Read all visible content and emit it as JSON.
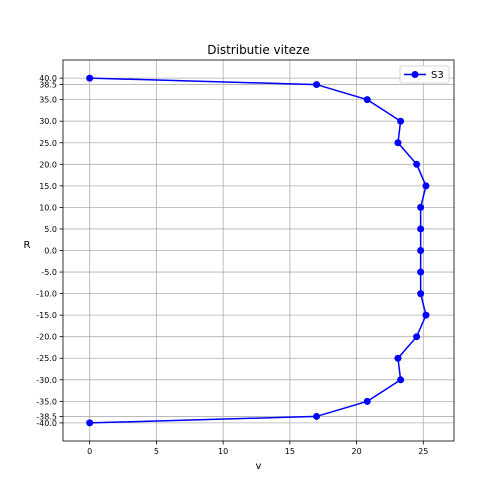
{
  "chart_data": {
    "type": "line",
    "title": "Distributie viteze",
    "xlabel": "v",
    "ylabel": "R",
    "xlim": [
      -2,
      27.3
    ],
    "ylim": [
      -44.2,
      44.2
    ],
    "xticks": [
      0,
      5,
      10,
      15,
      20,
      25
    ],
    "xtick_labels": [
      "0",
      "5",
      "10",
      "15",
      "20",
      "25"
    ],
    "yticks": [
      40,
      38.5,
      35,
      30,
      25,
      20,
      15,
      10,
      5,
      0,
      -5,
      -10,
      -15,
      -20,
      -25,
      -30,
      -35,
      -38.5,
      -40
    ],
    "ytick_labels": [
      "40.0",
      "38.5",
      "35.0",
      "30.0",
      "25.0",
      "20.0",
      "15.0",
      "10.0",
      "5.0",
      "0.0",
      "-5.0",
      "-10.0",
      "-15.0",
      "-20.0",
      "-25.0",
      "-30.0",
      "-35.0",
      "-38.5",
      "-40.0"
    ],
    "grid": true,
    "legend_position": "top-right",
    "series": [
      {
        "name": "S3",
        "color": "#0000ff",
        "marker": "circle",
        "x": [
          0,
          17.0,
          20.8,
          23.3,
          23.1,
          24.5,
          25.2,
          24.8,
          24.8,
          24.8,
          24.8,
          24.8,
          25.2,
          24.5,
          23.1,
          23.3,
          20.8,
          17.0,
          0
        ],
        "y": [
          40,
          38.5,
          35,
          30,
          25,
          20,
          15,
          10,
          5,
          0,
          -5,
          -10,
          -15,
          -20,
          -25,
          -30,
          -35,
          -38.5,
          -40
        ]
      }
    ]
  }
}
